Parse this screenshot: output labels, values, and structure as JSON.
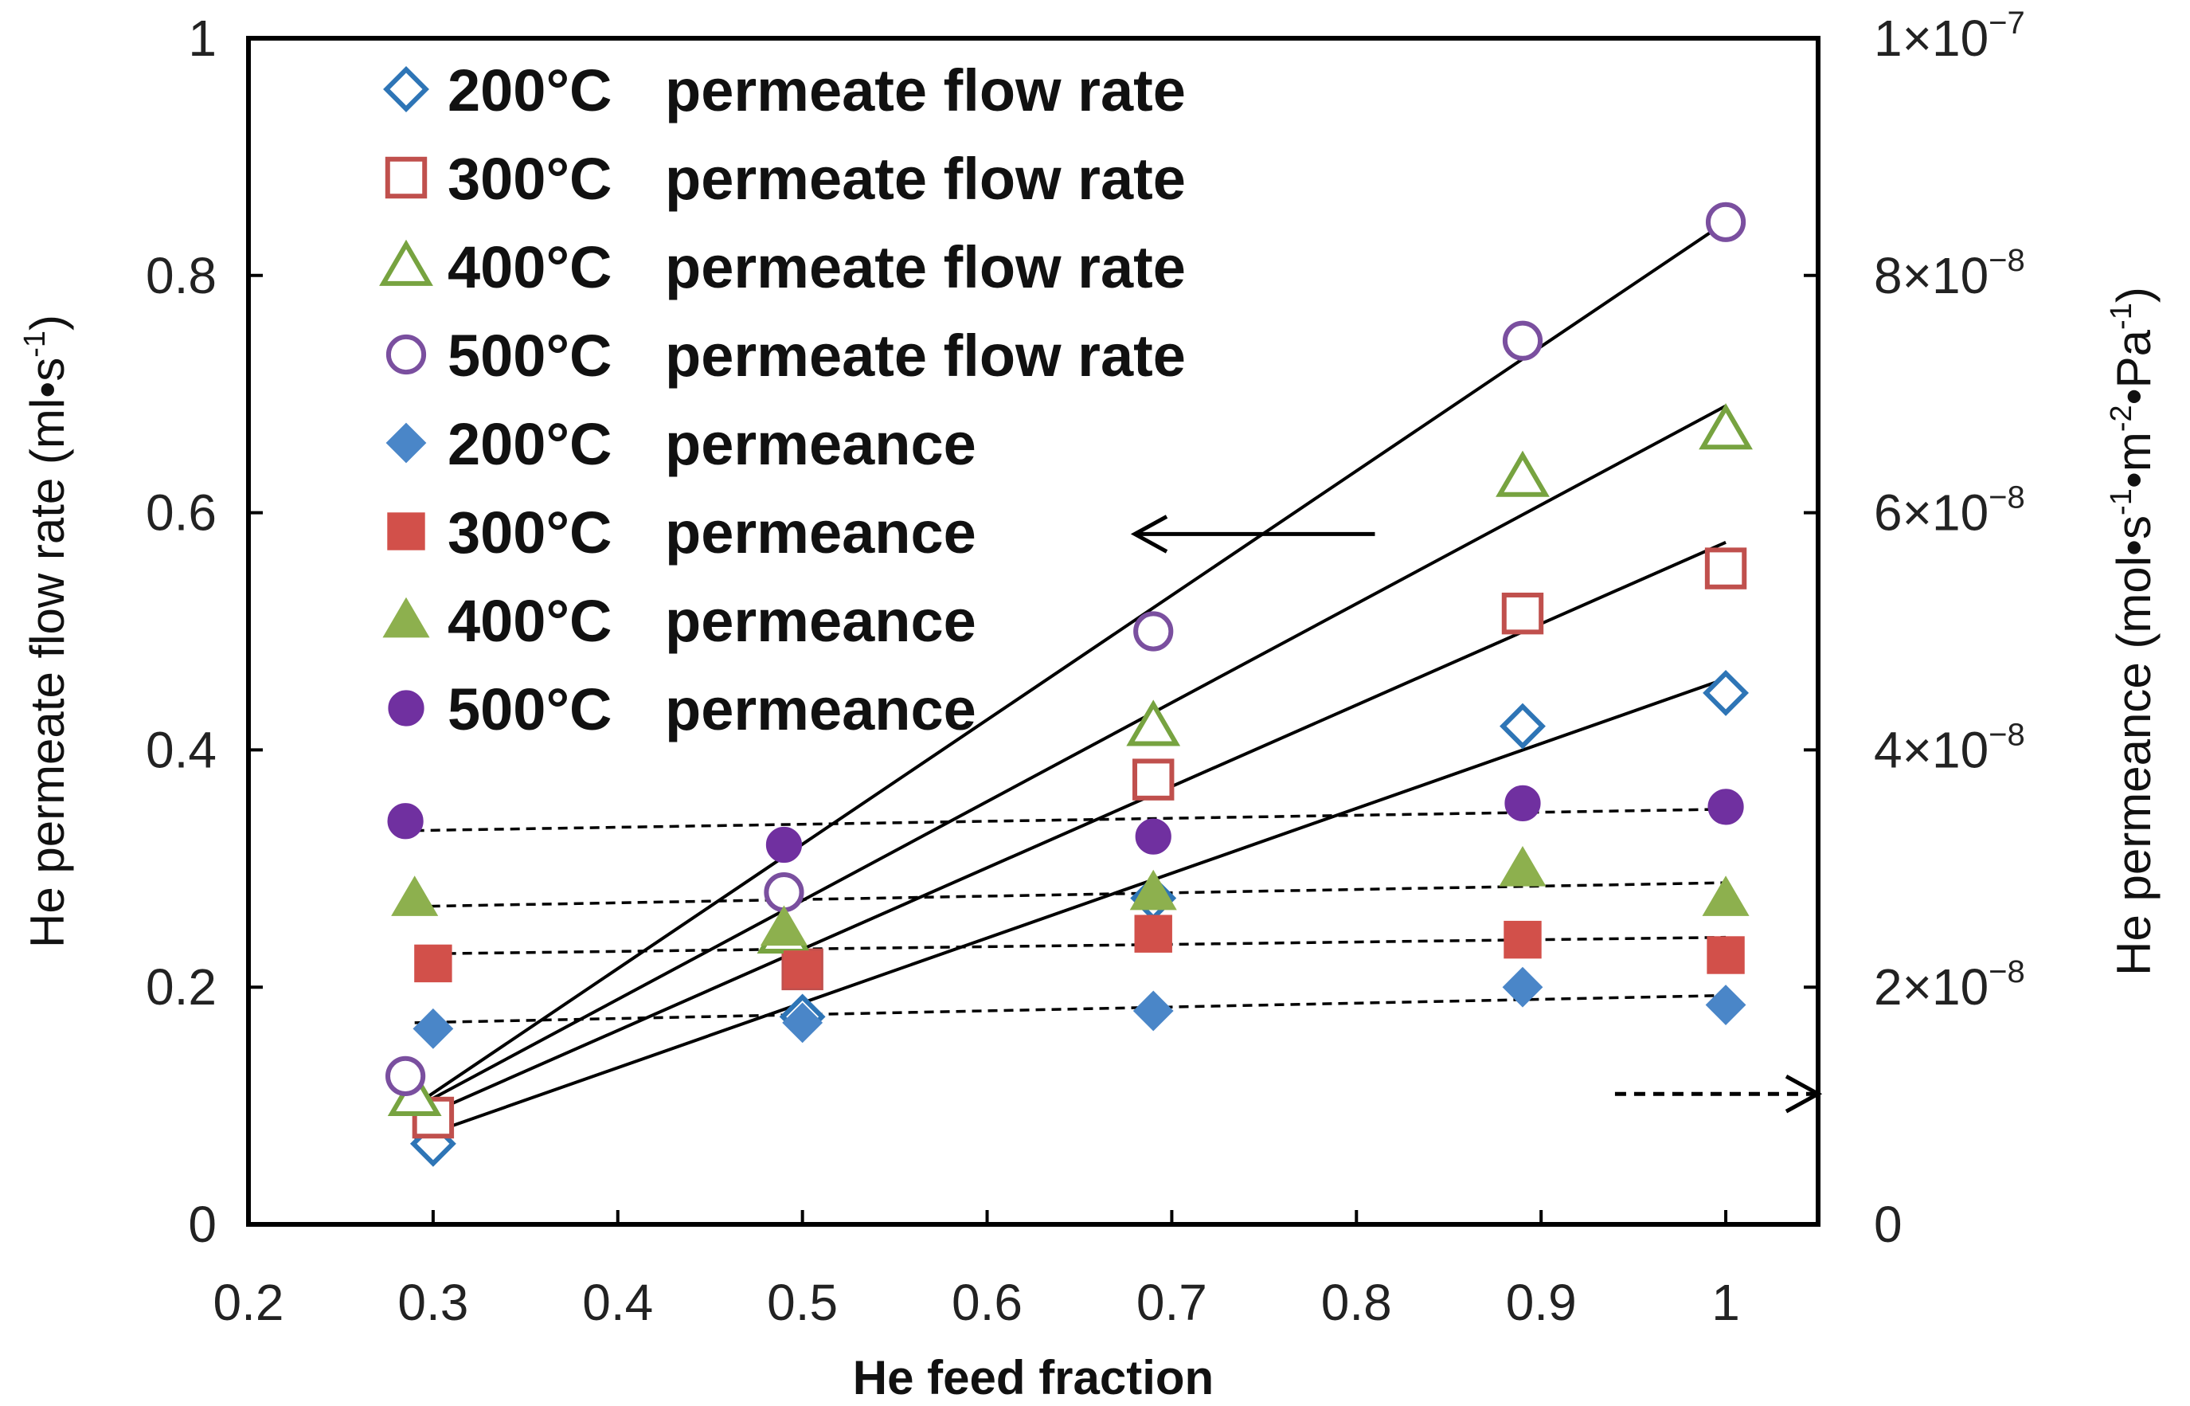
{
  "chart_data": {
    "type": "scatter",
    "xlabel": "He feed fraction",
    "ylabel_left": "He permeate flow rate (ml•s",
    "ylabel_left_sup": "-1",
    "ylabel_left_end": ")",
    "ylabel_right": {
      "prefix": "He permeance (mol•s",
      "sup1": "-1",
      "mid1": "•m",
      "sup2": "-2",
      "mid2": "•Pa",
      "sup3": "-1",
      "suffix": ")"
    },
    "xlim": [
      0.2,
      1.05
    ],
    "ylim_left": [
      0,
      1
    ],
    "ylim_right": [
      0,
      1e-07
    ],
    "x_ticks": [
      "0.2",
      "0.3",
      "0.4",
      "0.5",
      "0.6",
      "0.7",
      "0.8",
      "0.9",
      "1"
    ],
    "y_left_ticks": [
      "0",
      "0.2",
      "0.4",
      "0.6",
      "0.8",
      "1"
    ],
    "y_right_ticks": [
      {
        "base": "0",
        "exp": ""
      },
      {
        "base": "2×10",
        "exp": "−8"
      },
      {
        "base": "4×10",
        "exp": "−8"
      },
      {
        "base": "6×10",
        "exp": "−8"
      },
      {
        "base": "8×10",
        "exp": "−8"
      },
      {
        "base": "1×10",
        "exp": "−7"
      }
    ],
    "legend": {
      "position": "top-left",
      "entries": [
        {
          "temp": "200°C",
          "label": "permeate flow rate"
        },
        {
          "temp": "300°C",
          "label": "permeate flow rate"
        },
        {
          "temp": "400°C",
          "label": "permeate flow rate"
        },
        {
          "temp": "500°C",
          "label": "permeate flow rate"
        },
        {
          "temp": "200°C",
          "label": "permeance"
        },
        {
          "temp": "300°C",
          "label": "permeance"
        },
        {
          "temp": "400°C",
          "label": "permeance"
        },
        {
          "temp": "500°C",
          "label": "permeance"
        }
      ]
    },
    "series": [
      {
        "name": "200°C permeate flow rate",
        "axis": "left",
        "marker": "diamond",
        "filled": false,
        "color": "#2E75B6",
        "x": [
          0.3,
          0.5,
          0.69,
          0.89,
          1.0
        ],
        "y": [
          0.068,
          0.175,
          0.275,
          0.42,
          0.448
        ],
        "fit": {
          "style": "solid",
          "x": [
            0.29,
            1.0
          ],
          "y": [
            0.072,
            0.46
          ]
        }
      },
      {
        "name": "300°C permeate flow rate",
        "axis": "left",
        "marker": "square",
        "filled": false,
        "color": "#C0504D",
        "x": [
          0.3,
          0.5,
          0.69,
          0.89,
          1.0
        ],
        "y": [
          0.09,
          0.215,
          0.375,
          0.515,
          0.553
        ],
        "fit": {
          "style": "solid",
          "x": [
            0.29,
            1.0
          ],
          "y": [
            0.088,
            0.575
          ]
        }
      },
      {
        "name": "400°C permeate flow rate",
        "axis": "left",
        "marker": "triangle",
        "filled": false,
        "color": "#77A340",
        "x": [
          0.29,
          0.49,
          0.69,
          0.89,
          1.0
        ],
        "y": [
          0.108,
          0.245,
          0.42,
          0.63,
          0.67
        ],
        "fit": {
          "style": "solid",
          "x": [
            0.29,
            1.0
          ],
          "y": [
            0.098,
            0.69
          ]
        }
      },
      {
        "name": "500°C permeate flow rate",
        "axis": "left",
        "marker": "circle",
        "filled": false,
        "color": "#7A4F9F",
        "x": [
          0.285,
          0.49,
          0.69,
          0.89,
          1.0
        ],
        "y": [
          0.125,
          0.28,
          0.5,
          0.745,
          0.845
        ],
        "fit": {
          "style": "solid",
          "x": [
            0.285,
            1.0
          ],
          "y": [
            0.095,
            0.845
          ]
        }
      },
      {
        "name": "200°C permeance",
        "axis": "right",
        "marker": "diamond",
        "filled": true,
        "color": "#4A86C8",
        "x": [
          0.3,
          0.5,
          0.69,
          0.89,
          1.0
        ],
        "y": [
          1.65e-08,
          1.7e-08,
          1.8e-08,
          2e-08,
          1.85e-08
        ],
        "fit": {
          "style": "dashed",
          "x": [
            0.29,
            1.0
          ],
          "y": [
            1.7e-08,
            1.93e-08
          ]
        }
      },
      {
        "name": "300°C permeance",
        "axis": "right",
        "marker": "square",
        "filled": true,
        "color": "#D2504A",
        "x": [
          0.3,
          0.5,
          0.69,
          0.89,
          1.0
        ],
        "y": [
          2.2e-08,
          2.15e-08,
          2.45e-08,
          2.4e-08,
          2.27e-08
        ],
        "fit": {
          "style": "dashed",
          "x": [
            0.29,
            1.0
          ],
          "y": [
            2.28e-08,
            2.42e-08
          ]
        }
      },
      {
        "name": "400°C permeance",
        "axis": "right",
        "marker": "triangle",
        "filled": true,
        "color": "#8DB04E",
        "x": [
          0.29,
          0.49,
          0.69,
          0.89,
          1.0
        ],
        "y": [
          2.75e-08,
          2.5e-08,
          2.8e-08,
          3e-08,
          2.75e-08
        ],
        "fit": {
          "style": "dashed",
          "x": [
            0.29,
            1.0
          ],
          "y": [
            2.68e-08,
            2.88e-08
          ]
        }
      },
      {
        "name": "500°C permeance",
        "axis": "right",
        "marker": "circle",
        "filled": true,
        "color": "#7030A0",
        "x": [
          0.285,
          0.49,
          0.69,
          0.89,
          1.0
        ],
        "y": [
          3.4e-08,
          3.2e-08,
          3.27e-08,
          3.55e-08,
          3.52e-08
        ],
        "fit": {
          "style": "dashed",
          "x": [
            0.29,
            1.0
          ],
          "y": [
            3.32e-08,
            3.5e-08
          ]
        }
      }
    ],
    "annotations": [
      {
        "type": "arrow",
        "style": "solid",
        "points_to": "left axis",
        "x_from": 0.81,
        "x_to": 0.68,
        "y_left": 0.582
      },
      {
        "type": "arrow",
        "style": "dashed",
        "points_to": "right axis",
        "x_from": 0.94,
        "x_to": 1.05,
        "y_left": 0.11
      }
    ]
  }
}
